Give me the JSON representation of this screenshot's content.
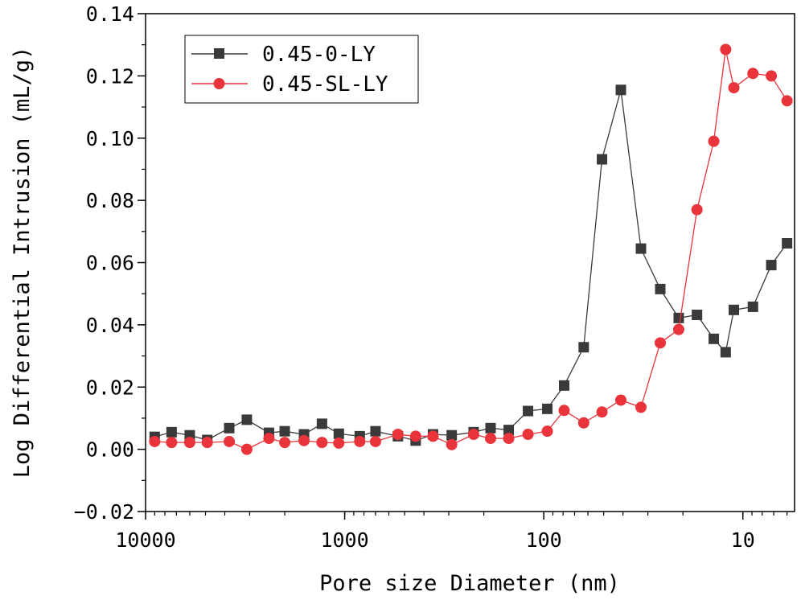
{
  "chart_data": {
    "type": "line",
    "title": "",
    "xlabel": "Pore size Diameter (nm)",
    "ylabel": "Log Differential Intrusion (mL/g)",
    "x_scale": "log",
    "x_reversed": true,
    "xlim": [
      10000,
      5.5
    ],
    "ylim": [
      -0.02,
      0.14
    ],
    "x_ticks": [
      10000,
      1000,
      100,
      10
    ],
    "x_tick_labels": [
      "10000",
      "1000",
      "100",
      "10"
    ],
    "y_ticks": [
      -0.02,
      0,
      0.02,
      0.04,
      0.06,
      0.08,
      0.1,
      0.12,
      0.14
    ],
    "y_tick_labels": [
      "−0.02",
      "0.00",
      "0.02",
      "0.04",
      "0.06",
      "0.08",
      "0.10",
      "0.12",
      "0.14"
    ],
    "legend_position": "top-left",
    "series": [
      {
        "name": "0.45-0-LY",
        "color": "#3a3a3a",
        "marker": "square",
        "x": [
          9000,
          7400,
          6000,
          4900,
          3800,
          3100,
          2400,
          2000,
          1600,
          1300,
          1070,
          840,
          700,
          540,
          440,
          360,
          290,
          225,
          185,
          150,
          120,
          96,
          79,
          63,
          51,
          41,
          32.5,
          26,
          21,
          17,
          14,
          12.2,
          11.1,
          8.9,
          7.2,
          6.0
        ],
        "y": [
          0.004,
          0.0055,
          0.0045,
          0.003,
          0.0068,
          0.0095,
          0.0053,
          0.0058,
          0.0048,
          0.0082,
          0.005,
          0.0042,
          0.0058,
          0.0042,
          0.0028,
          0.0048,
          0.0045,
          0.0055,
          0.0068,
          0.0062,
          0.0123,
          0.013,
          0.0205,
          0.0328,
          0.0932,
          0.1155,
          0.0645,
          0.0515,
          0.0422,
          0.0432,
          0.0355,
          0.0312,
          0.0448,
          0.0458,
          0.0592,
          0.0662
        ]
      },
      {
        "name": "0.45-SL-LY",
        "color": "#e8343a",
        "marker": "circle",
        "x": [
          9000,
          7400,
          6000,
          4900,
          3800,
          3100,
          2400,
          2000,
          1600,
          1300,
          1070,
          840,
          700,
          540,
          440,
          360,
          290,
          225,
          185,
          150,
          120,
          96,
          79,
          63,
          51,
          41,
          32.5,
          26,
          21,
          17,
          14,
          12.2,
          11.1,
          8.9,
          7.2,
          6.0
        ],
        "y": [
          0.0025,
          0.0022,
          0.0022,
          0.0022,
          0.0025,
          0.0,
          0.0035,
          0.0022,
          0.0028,
          0.0022,
          0.002,
          0.0025,
          0.0025,
          0.0048,
          0.0042,
          0.0042,
          0.0015,
          0.0048,
          0.0035,
          0.0035,
          0.0048,
          0.0058,
          0.0125,
          0.0085,
          0.012,
          0.0158,
          0.0135,
          0.0342,
          0.0385,
          0.077,
          0.099,
          0.1285,
          0.1162,
          0.1208,
          0.12,
          0.112
        ]
      }
    ]
  }
}
